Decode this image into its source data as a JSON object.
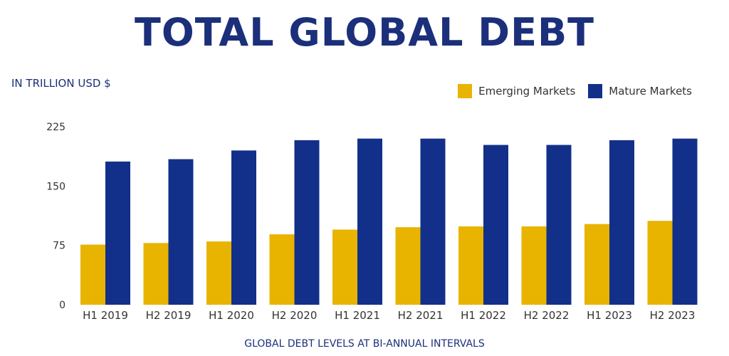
{
  "chart_data": {
    "type": "bar",
    "title": "TOTAL GLOBAL DEBT",
    "ylabel": "IN TRILLION USD $",
    "xlabel": "GLOBAL DEBT LEVELS AT BI-ANNUAL INTERVALS",
    "categories": [
      "H1 2019",
      "H2 2019",
      "H1 2020",
      "H2 2020",
      "H1 2021",
      "H2 2021",
      "H1 2022",
      "H2 2022",
      "H1 2023",
      "H2 2023"
    ],
    "series": [
      {
        "name": "Emerging Markets",
        "color": "#e8b400",
        "values": [
          76,
          78,
          80,
          89,
          95,
          98,
          99,
          99,
          102,
          106
        ]
      },
      {
        "name": "Mature Markets",
        "color": "#12308a",
        "values": [
          181,
          184,
          195,
          208,
          210,
          210,
          202,
          202,
          208,
          210
        ]
      }
    ],
    "ylim": [
      0,
      225
    ],
    "yticks": [
      "0",
      "75",
      "150",
      "225"
    ],
    "legend_position": "top-right",
    "grid": false
  }
}
